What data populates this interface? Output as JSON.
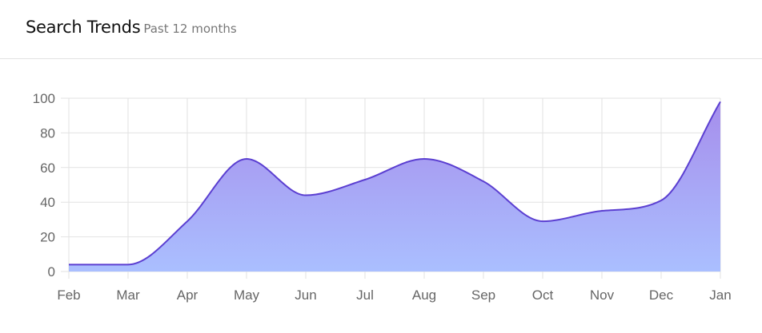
{
  "header": {
    "title": "Search Trends",
    "subtitle": "Past 12 months"
  },
  "chart_data": {
    "type": "area",
    "title": "Search Trends",
    "subtitle": "Past 12 months",
    "categories": [
      "Feb",
      "Mar",
      "Apr",
      "May",
      "Jun",
      "Jul",
      "Aug",
      "Sep",
      "Oct",
      "Nov",
      "Dec",
      "Jan"
    ],
    "series": [
      {
        "name": "Search Trends",
        "values": [
          4,
          4,
          29,
          65,
          44,
          53,
          65,
          52,
          29,
          35,
          41,
          98
        ]
      }
    ],
    "xlabel": "",
    "ylabel": "",
    "ylim": [
      0,
      100
    ],
    "yticks": [
      0,
      20,
      40,
      60,
      80,
      100
    ],
    "grid": true,
    "legend": "none",
    "colors": {
      "line": "#5b3fd1",
      "fill_top": "#a68eec",
      "fill_bottom": "#aabfff"
    }
  }
}
